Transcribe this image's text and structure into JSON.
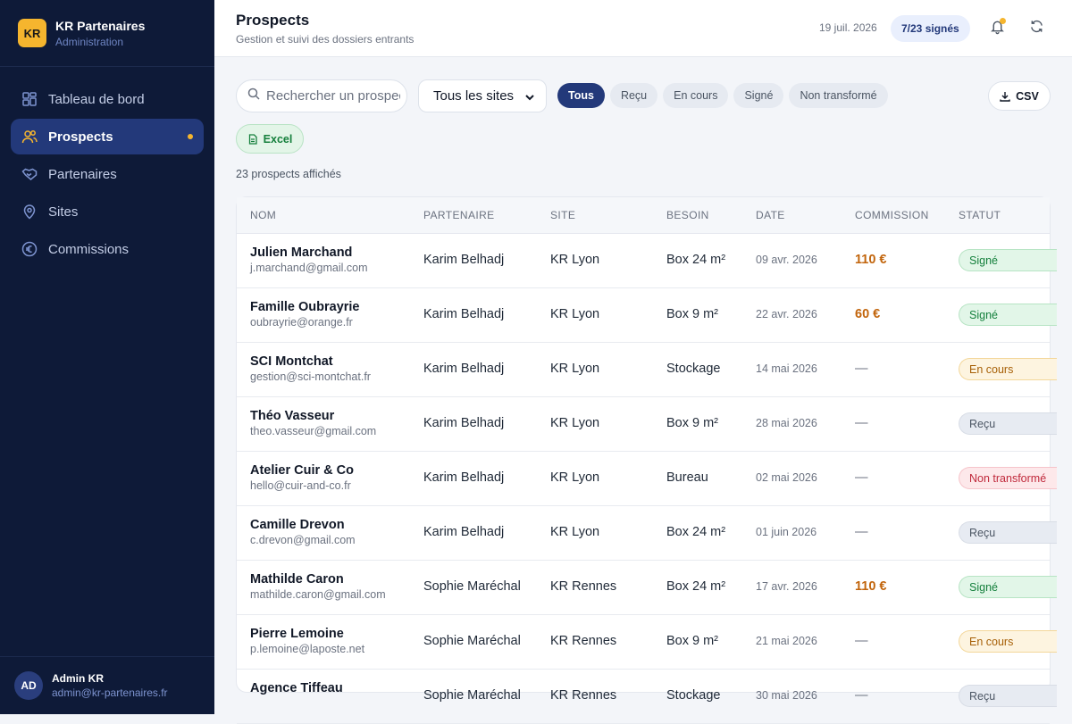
{
  "brand": {
    "logo": "KR",
    "name": "KR Partenaires",
    "subtitle": "Administration"
  },
  "sidebar": {
    "items": [
      {
        "label": "Tableau de bord",
        "icon": "dashboard-icon"
      },
      {
        "label": "Prospects",
        "icon": "users-icon",
        "active": true
      },
      {
        "label": "Partenaires",
        "icon": "handshake-icon"
      },
      {
        "label": "Sites",
        "icon": "map-pin-icon"
      },
      {
        "label": "Commissions",
        "icon": "euro-icon"
      }
    ]
  },
  "user": {
    "initials": "AD",
    "name": "Admin KR",
    "email": "admin@kr-partenaires.fr"
  },
  "header": {
    "title": "Prospects",
    "subtitle": "Gestion et suivi des dossiers entrants",
    "date": "19 juil. 2026",
    "badge": "7/23 signés"
  },
  "toolbar": {
    "search_placeholder": "Rechercher un prospect",
    "site_select": "Tous les sites",
    "filters": [
      "Tous",
      "Reçu",
      "En cours",
      "Signé",
      "Non transformé"
    ],
    "active_filter": "Tous",
    "csv_label": "CSV",
    "excel_label": "Excel",
    "count_text": "23 prospects affichés"
  },
  "table": {
    "headers": {
      "name": "NOM",
      "partner": "PARTENAIRE",
      "site": "SITE",
      "need": "BESOIN",
      "date": "DATE",
      "commission": "COMMISSION",
      "status": "STATUT"
    },
    "rows": [
      {
        "name": "Julien Marchand",
        "email": "j.marchand@gmail.com",
        "partner": "Karim Belhadj",
        "site": "KR Lyon",
        "need": "Box 24 m²",
        "date": "09 avr. 2026",
        "commission": "110 €",
        "status": "Signé"
      },
      {
        "name": "Famille Oubrayrie",
        "email": "oubrayrie@orange.fr",
        "partner": "Karim Belhadj",
        "site": "KR Lyon",
        "need": "Box 9 m²",
        "date": "22 avr. 2026",
        "commission": "60 €",
        "status": "Signé"
      },
      {
        "name": "SCI Montchat",
        "email": "gestion@sci-montchat.fr",
        "partner": "Karim Belhadj",
        "site": "KR Lyon",
        "need": "Stockage",
        "date": "14 mai 2026",
        "commission": "—",
        "status": "En cours"
      },
      {
        "name": "Théo Vasseur",
        "email": "theo.vasseur@gmail.com",
        "partner": "Karim Belhadj",
        "site": "KR Lyon",
        "need": "Box 9 m²",
        "date": "28 mai 2026",
        "commission": "—",
        "status": "Reçu"
      },
      {
        "name": "Atelier Cuir & Co",
        "email": "hello@cuir-and-co.fr",
        "partner": "Karim Belhadj",
        "site": "KR Lyon",
        "need": "Bureau",
        "date": "02 mai 2026",
        "commission": "—",
        "status": "Non transformé"
      },
      {
        "name": "Camille Drevon",
        "email": "c.drevon@gmail.com",
        "partner": "Karim Belhadj",
        "site": "KR Lyon",
        "need": "Box 24 m²",
        "date": "01 juin 2026",
        "commission": "—",
        "status": "Reçu"
      },
      {
        "name": "Mathilde Caron",
        "email": "mathilde.caron@gmail.com",
        "partner": "Sophie Maréchal",
        "site": "KR Rennes",
        "need": "Box 24 m²",
        "date": "17 avr. 2026",
        "commission": "110 €",
        "status": "Signé"
      },
      {
        "name": "Pierre Lemoine",
        "email": "p.lemoine@laposte.net",
        "partner": "Sophie Maréchal",
        "site": "KR Rennes",
        "need": "Box 9 m²",
        "date": "21 mai 2026",
        "commission": "—",
        "status": "En cours"
      },
      {
        "name": "Agence Tiffeau",
        "email": "",
        "partner": "Sophie Maréchal",
        "site": "KR Rennes",
        "need": "Stockage",
        "date": "30 mai 2026",
        "commission": "—",
        "status": "Reçu"
      }
    ]
  },
  "colors": {
    "sidebar_bg": "#0e1a38",
    "accent": "#23397a",
    "brand_yellow": "#f5b52e",
    "commission": "#c2650c",
    "status_signe": "#15803d",
    "status_en_cours": "#a65f06",
    "status_recu": "#4b5563",
    "status_non_transforme": "#c0293b"
  }
}
